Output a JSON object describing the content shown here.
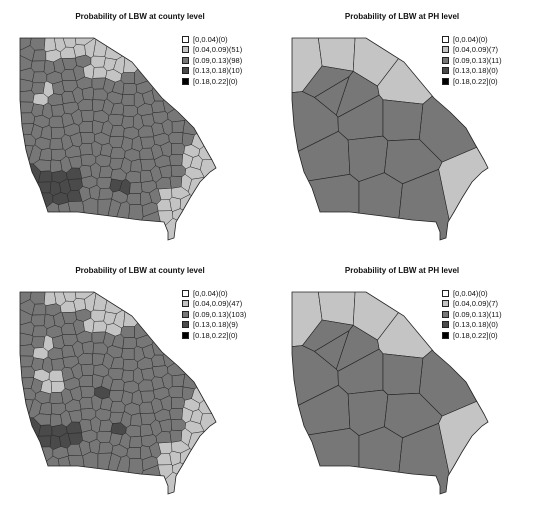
{
  "colors": {
    "bin0": "#ffffff",
    "bin1": "#c4c4c4",
    "bin2": "#777777",
    "bin3": "#4a4a4a",
    "bin4": "#000000",
    "border": "#222222"
  },
  "panels": [
    {
      "title": "Probability of LBW at county level",
      "level": "county",
      "legend": [
        {
          "label": "[0,0.04)(0)",
          "color": "#ffffff"
        },
        {
          "label": "[0.04,0.09)(51)",
          "color": "#c4c4c4"
        },
        {
          "label": "[0.09,0.13)(98)",
          "color": "#777777"
        },
        {
          "label": "[0.13,0.18)(10)",
          "color": "#4a4a4a"
        },
        {
          "label": "[0.18,0.22](0)",
          "color": "#000000"
        }
      ]
    },
    {
      "title": "Probability of LBW at PH level",
      "level": "ph",
      "legend": [
        {
          "label": "[0,0.04)(0)",
          "color": "#ffffff"
        },
        {
          "label": "[0.04,0.09)(7)",
          "color": "#c4c4c4"
        },
        {
          "label": "[0.09,0.13)(11)",
          "color": "#777777"
        },
        {
          "label": "[0.13,0.18)(0)",
          "color": "#4a4a4a"
        },
        {
          "label": "[0.18,0.22](0)",
          "color": "#000000"
        }
      ]
    },
    {
      "title": "Probability of LBW at county level",
      "level": "county",
      "legend": [
        {
          "label": "[0,0.04)(0)",
          "color": "#ffffff"
        },
        {
          "label": "[0.04,0.09)(47)",
          "color": "#c4c4c4"
        },
        {
          "label": "[0.09,0.13)(103)",
          "color": "#777777"
        },
        {
          "label": "[0.13,0.18)(9)",
          "color": "#4a4a4a"
        },
        {
          "label": "[0.18,0.22](0)",
          "color": "#000000"
        }
      ]
    },
    {
      "title": "Probability of LBW at PH level",
      "level": "ph",
      "legend": [
        {
          "label": "[0,0.04)(0)",
          "color": "#ffffff"
        },
        {
          "label": "[0.04,0.09)(7)",
          "color": "#c4c4c4"
        },
        {
          "label": "[0.09,0.13)(11)",
          "color": "#777777"
        },
        {
          "label": "[0.13,0.18)(0)",
          "color": "#4a4a4a"
        },
        {
          "label": "[0.18,0.22](0)",
          "color": "#000000"
        }
      ]
    }
  ]
}
